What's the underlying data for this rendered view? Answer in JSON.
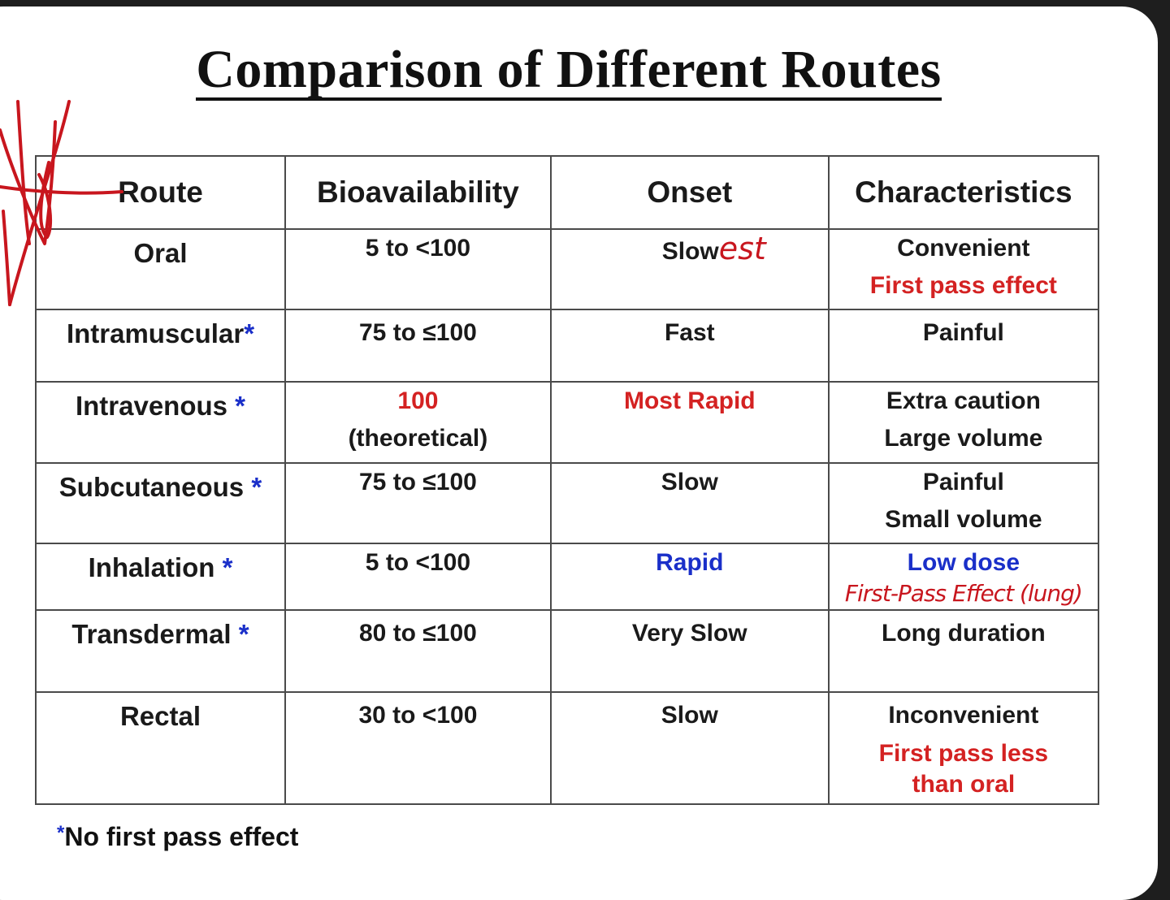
{
  "title": "Comparison of Different Routes",
  "headers": [
    "Route",
    "Bioavailability",
    "Onset",
    "Characteristics"
  ],
  "rows": [
    {
      "route": "Oral",
      "star": "",
      "bio": [
        "5 to <100"
      ],
      "onset": [
        "Slow"
      ],
      "onset_hand": "est",
      "chars": [
        "Convenient",
        "First pass effect"
      ],
      "chars_colors": [
        "black",
        "red"
      ]
    },
    {
      "route": "Intramuscular",
      "star": "*",
      "bio": [
        "75 to ≤100"
      ],
      "onset": [
        "Fast"
      ],
      "chars": [
        "Painful"
      ],
      "chars_colors": [
        "black"
      ]
    },
    {
      "route": "Intravenous ",
      "star": "*",
      "bio": [
        "100",
        "(theoretical)"
      ],
      "onset": [
        "Most Rapid"
      ],
      "chars": [
        "Extra caution",
        "Large volume"
      ],
      "chars_colors": [
        "black",
        "black"
      ]
    },
    {
      "route": "Subcutaneous ",
      "star": "*",
      "bio": [
        "75 to ≤100"
      ],
      "onset": [
        "Slow"
      ],
      "chars": [
        "Painful",
        "Small volume"
      ],
      "chars_colors": [
        "black",
        "black"
      ]
    },
    {
      "route": "Inhalation ",
      "star": "*",
      "bio": [
        "5 to <100"
      ],
      "onset": [
        "Rapid"
      ],
      "chars": [
        "Low dose"
      ],
      "chars_hand": "First-Pass Effect (lung)",
      "chars_colors": [
        "blue"
      ]
    },
    {
      "route": "Transdermal ",
      "star": "*",
      "bio": [
        "80 to ≤100"
      ],
      "onset": [
        "Very Slow"
      ],
      "chars": [
        "Long duration"
      ],
      "chars_colors": [
        "black"
      ]
    },
    {
      "route": "Rectal",
      "star": "",
      "bio": [
        "30 to <100"
      ],
      "onset": [
        "Slow"
      ],
      "chars": [
        "Inconvenient",
        "First pass less",
        "than oral"
      ],
      "chars_colors": [
        "black",
        "red",
        "red"
      ]
    }
  ],
  "footnote_star": "*",
  "footnote": "No first pass effect",
  "colors": {
    "red": "#d42222",
    "blue": "#1a2fc9",
    "ink": "#c8161e"
  }
}
